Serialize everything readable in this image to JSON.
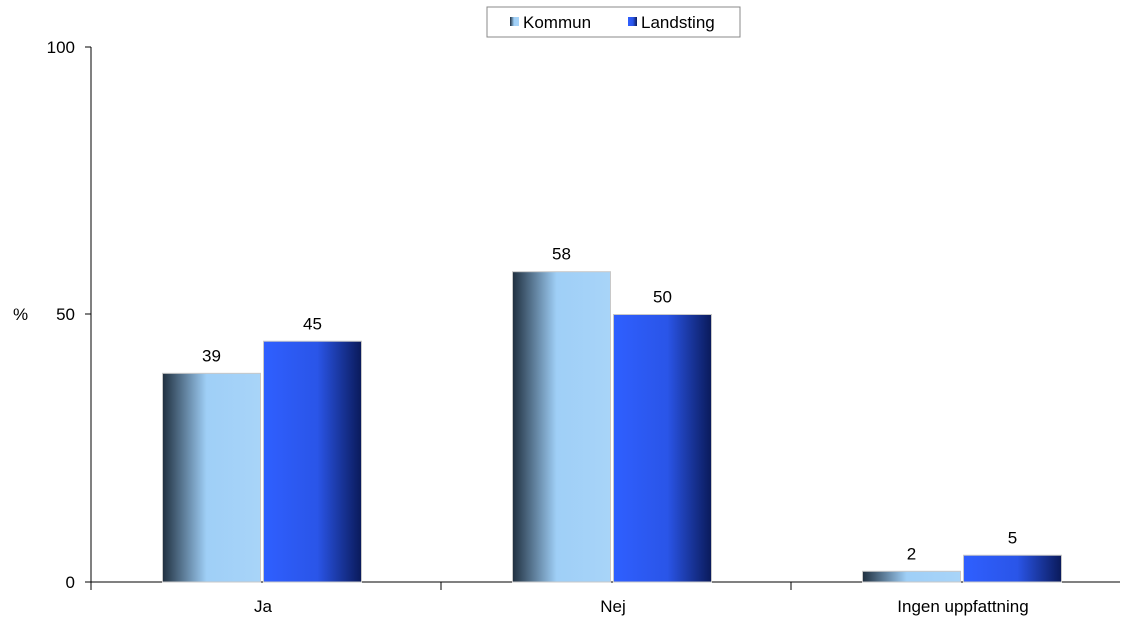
{
  "chart_data": {
    "type": "bar",
    "categories": [
      "Ja",
      "Nej",
      "Ingen uppfattning"
    ],
    "series": [
      {
        "name": "Kommun",
        "values": [
          39,
          58,
          2
        ]
      },
      {
        "name": "Landsting",
        "values": [
          45,
          50,
          5
        ]
      }
    ],
    "ylabel": "%",
    "ylim": [
      0,
      100
    ],
    "yticks": [
      "0",
      "50",
      "100"
    ],
    "legend_position": "top-center",
    "grid": false,
    "data_labels": true,
    "colors": {
      "kommun_light": "#9fcff7",
      "kommun_dark": "#1f2f3f",
      "landsting_light": "#2f5fff",
      "landsting_dark": "#0a1a5a"
    }
  }
}
